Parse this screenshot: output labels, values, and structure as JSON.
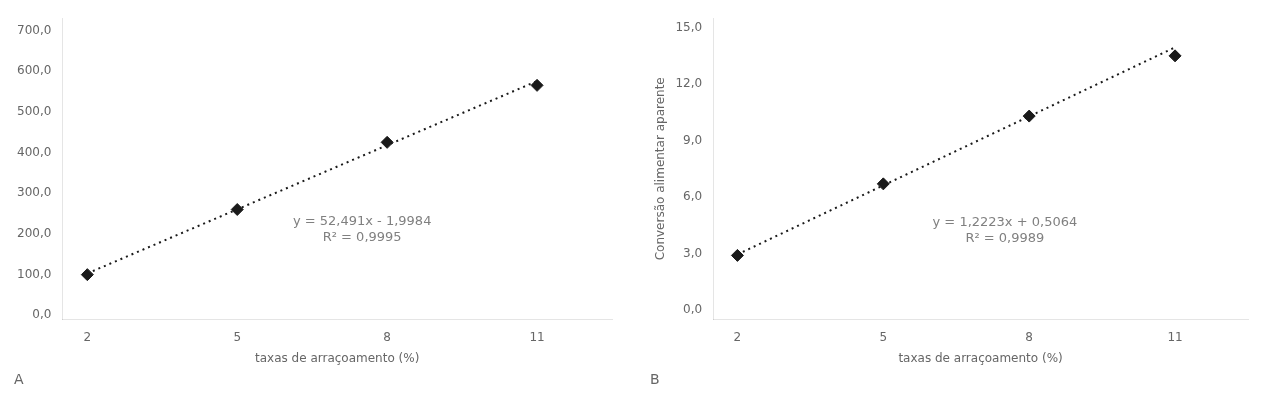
{
  "chart_data": [
    {
      "type": "scatter",
      "title": "A",
      "xlabel": "taxas de arraçoamento (%)",
      "xlim": [
        1.5,
        12.5
      ],
      "xticks": [
        2,
        5,
        8,
        11
      ],
      "ylim": [
        -10,
        730
      ],
      "yticks": [
        {
          "value": 0.0,
          "label": "0,0"
        },
        {
          "value": 100.0,
          "label": "100,0"
        },
        {
          "value": 200.0,
          "label": "200,0"
        },
        {
          "value": 300.0,
          "label": "300,0"
        },
        {
          "value": 400.0,
          "label": "400,0"
        },
        {
          "value": 500.0,
          "label": "500,0"
        },
        {
          "value": 600.0,
          "label": "600,0"
        },
        {
          "value": 700.0,
          "label": "700,0"
        }
      ],
      "grid": false,
      "series": [
        {
          "type": "scatter",
          "marker": "diamond",
          "color": "#1a1a1a",
          "x": [
            2,
            5,
            8,
            11
          ],
          "values": [
            100.0,
            260.0,
            425.0,
            565.0
          ]
        },
        {
          "type": "line",
          "line_style": "dotted",
          "color": "#1a1a1a",
          "x": [
            2,
            11
          ],
          "values": [
            102.9836,
            575.4026
          ]
        }
      ],
      "annotations": [
        {
          "text": "y = 52,491x - 1,9984\nR² = 0,9995",
          "x": 7.5,
          "y": 210,
          "color": "#808080"
        }
      ]
    },
    {
      "type": "scatter",
      "title": "B",
      "xlabel": "taxas de arraçoamento (%)",
      "ylabel": "Conversão alimentar aparente",
      "xlim": [
        1.5,
        12.5
      ],
      "xticks": [
        2,
        5,
        8,
        11
      ],
      "ylim": [
        -0.5,
        15.5
      ],
      "yticks": [
        {
          "value": 0.0,
          "label": "0,0"
        },
        {
          "value": 3.0,
          "label": "3,0"
        },
        {
          "value": 6.0,
          "label": "6,0"
        },
        {
          "value": 9.0,
          "label": "9,0"
        },
        {
          "value": 12.0,
          "label": "12,0"
        },
        {
          "value": 15.0,
          "label": "15,0"
        }
      ],
      "grid": false,
      "series": [
        {
          "type": "scatter",
          "marker": "diamond",
          "color": "#1a1a1a",
          "x": [
            2,
            5,
            8,
            11
          ],
          "values": [
            2.9,
            6.7,
            10.3,
            13.5
          ]
        },
        {
          "type": "line",
          "line_style": "dotted",
          "color": "#1a1a1a",
          "x": [
            2,
            11
          ],
          "values": [
            2.951,
            13.9517
          ]
        }
      ],
      "annotations": [
        {
          "text": "y = 1,2223x + 0,5064\nR² = 0,9989",
          "x": 7.5,
          "y": 4.2,
          "color": "#808080"
        }
      ]
    }
  ]
}
